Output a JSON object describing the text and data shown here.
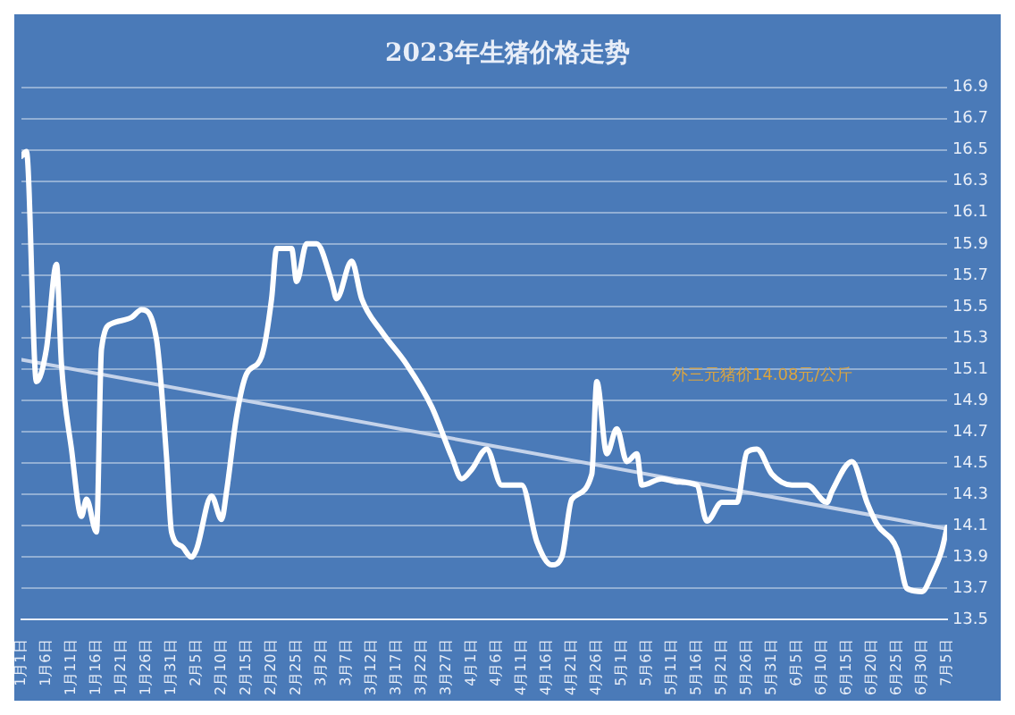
{
  "chart_data": {
    "type": "line",
    "title": "2023年生猪价格走势",
    "annotations": [
      "外三元猪价14.08元/公斤"
    ],
    "x": [
      "--01-01",
      "--01-02",
      "--01-04",
      "--01-06",
      "--01-08",
      "--01-09",
      "--01-11",
      "--01-13",
      "--01-14",
      "--01-16",
      "--01-17",
      "--01-19",
      "--01-23",
      "--01-25",
      "--01-28",
      "--01-30",
      "--01-31",
      "--02-02",
      "--02-04",
      "--02-05",
      "--02-08",
      "--02-10",
      "--02-11",
      "--02-13",
      "--02-15",
      "--02-18",
      "--02-20",
      "--02-21",
      "--02-24",
      "--02-25",
      "--02-27",
      "--03-01",
      "--03-04",
      "--03-05",
      "--03-08",
      "--03-10",
      "--03-14",
      "--03-19",
      "--03-24",
      "--03-28",
      "--03-30",
      "--04-01",
      "--04-04",
      "--04-07",
      "--04-11",
      "--04-14",
      "--04-17",
      "--04-19",
      "--04-21",
      "--04-25",
      "--04-26",
      "--04-28",
      "--04-30",
      "--05-02",
      "--05-04",
      "--05-05",
      "--05-09",
      "--05-12",
      "--05-16",
      "--05-18",
      "--05-21",
      "--05-24",
      "--05-26",
      "--05-28",
      "--05-31",
      "--06-04",
      "--06-07",
      "--06-11",
      "--06-12",
      "--06-16",
      "--06-19",
      "--06-21",
      "--06-25",
      "--06-27",
      "--06-30",
      "--07-02",
      "--07-04",
      "--07-05"
    ],
    "series": [
      {
        "color": "#ffffff",
        "values": [
          16.46,
          16.49,
          15.02,
          15.23,
          15.77,
          15.13,
          14.59,
          14.16,
          14.27,
          14.06,
          15.23,
          15.39,
          15.43,
          15.48,
          15.29,
          14.54,
          14.06,
          13.97,
          13.9,
          13.95,
          14.29,
          14.14,
          14.32,
          14.8,
          15.07,
          15.18,
          15.55,
          15.87,
          15.87,
          15.66,
          15.9,
          15.9,
          15.66,
          15.55,
          15.79,
          15.55,
          15.34,
          15.13,
          14.86,
          14.54,
          14.4,
          14.46,
          14.59,
          14.36,
          14.36,
          14.0,
          13.85,
          13.9,
          14.27,
          14.43,
          15.02,
          14.56,
          14.72,
          14.51,
          14.56,
          14.36,
          14.4,
          14.38,
          14.36,
          14.13,
          14.25,
          14.25,
          14.57,
          14.59,
          14.43,
          14.36,
          14.36,
          14.25,
          14.32,
          14.51,
          14.25,
          14.11,
          13.95,
          13.7,
          13.68,
          13.79,
          13.95,
          14.09
        ]
      },
      {
        "type": "line",
        "color": "#c5d3ea",
        "x": [
          "--01-01",
          "--07-05"
        ],
        "values": [
          15.16,
          14.08
        ]
      }
    ],
    "xlim": [
      "--01-01",
      "--07-05"
    ],
    "xticks": [
      {
        "value": "--01-01",
        "label": "1月1日"
      },
      {
        "value": "--01-06",
        "label": "1月6日"
      },
      {
        "value": "--01-11",
        "label": "1月11日"
      },
      {
        "value": "--01-16",
        "label": "1月16日"
      },
      {
        "value": "--01-21",
        "label": "1月21日"
      },
      {
        "value": "--01-26",
        "label": "1月26日"
      },
      {
        "value": "--01-31",
        "label": "1月31日"
      },
      {
        "value": "--02-05",
        "label": "2月5日"
      },
      {
        "value": "--02-10",
        "label": "2月10日"
      },
      {
        "value": "--02-15",
        "label": "2月15日"
      },
      {
        "value": "--02-20",
        "label": "2月20日"
      },
      {
        "value": "--02-25",
        "label": "2月25日"
      },
      {
        "value": "--03-02",
        "label": "3月2日"
      },
      {
        "value": "--03-07",
        "label": "3月7日"
      },
      {
        "value": "--03-12",
        "label": "3月12日"
      },
      {
        "value": "--03-17",
        "label": "3月17日"
      },
      {
        "value": "--03-22",
        "label": "3月22日"
      },
      {
        "value": "--03-27",
        "label": "3月27日"
      },
      {
        "value": "--04-01",
        "label": "4月1日"
      },
      {
        "value": "--04-06",
        "label": "4月6日"
      },
      {
        "value": "--04-11",
        "label": "4月11日"
      },
      {
        "value": "--04-16",
        "label": "4月16日"
      },
      {
        "value": "--04-21",
        "label": "4月21日"
      },
      {
        "value": "--04-26",
        "label": "4月26日"
      },
      {
        "value": "--05-01",
        "label": "5月1日"
      },
      {
        "value": "--05-06",
        "label": "5月6日"
      },
      {
        "value": "--05-11",
        "label": "5月11日"
      },
      {
        "value": "--05-16",
        "label": "5月16日"
      },
      {
        "value": "--05-21",
        "label": "5月21日"
      },
      {
        "value": "--05-26",
        "label": "5月26日"
      },
      {
        "value": "--05-31",
        "label": "5月31日"
      },
      {
        "value": "--06-05",
        "label": "6月5日"
      },
      {
        "value": "--06-10",
        "label": "6月10日"
      },
      {
        "value": "--06-15",
        "label": "6月15日"
      },
      {
        "value": "--06-20",
        "label": "6月20日"
      },
      {
        "value": "--06-25",
        "label": "6月25日"
      },
      {
        "value": "--06-30",
        "label": "6月30日"
      },
      {
        "value": "--07-05",
        "label": "7月5日"
      }
    ],
    "ylim": [
      13.5,
      16.9
    ],
    "yticks": [
      13.5,
      13.7,
      13.9,
      14.1,
      14.3,
      14.5,
      14.7,
      14.9,
      15.1,
      15.3,
      15.5,
      15.7,
      15.9,
      16.1,
      16.3,
      16.5,
      16.7,
      16.9
    ],
    "grid": "y",
    "legend": false,
    "marker": "none",
    "line_style": "solid"
  }
}
